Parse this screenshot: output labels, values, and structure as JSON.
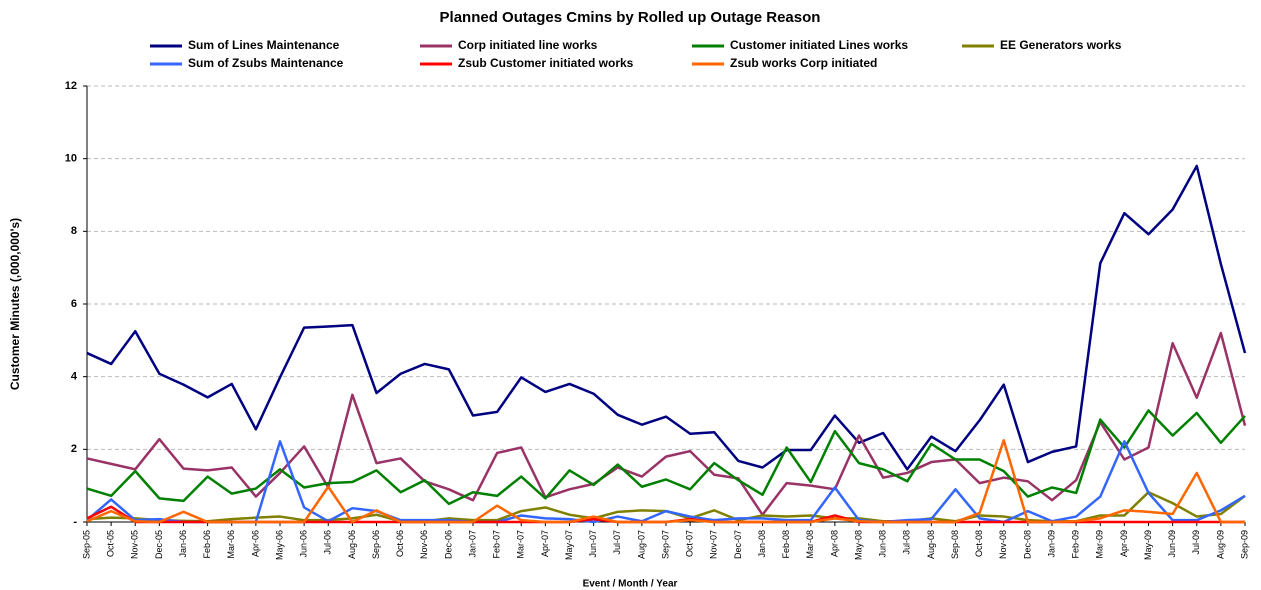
{
  "chart_data": {
    "type": "line",
    "title": "Planned Outages Cmins by Rolled up Outage Reason",
    "x_label": "Event / Month / Year",
    "y_label": "Customer Minutes (,000,000's)",
    "categories": [
      "Sep-05",
      "Oct-05",
      "Nov-05",
      "Dec-05",
      "Jan-06",
      "Feb-06",
      "Mar-06",
      "Apr-06",
      "May-06",
      "Jun-06",
      "Jul-06",
      "Aug-06",
      "Sep-06",
      "Oct-06",
      "Nov-06",
      "Dec-06",
      "Jan-07",
      "Feb-07",
      "Mar-07",
      "Apr-07",
      "May-07",
      "Jun-07",
      "Jul-07",
      "Aug-07",
      "Sep-07",
      "Oct-07",
      "Nov-07",
      "Dec-07",
      "Jan-08",
      "Feb-08",
      "Mar-08",
      "Apr-08",
      "May-08",
      "Jun-08",
      "Jul-08",
      "Aug-08",
      "Sep-08",
      "Oct-08",
      "Nov-08",
      "Dec-08",
      "Jan-09",
      "Feb-09",
      "Mar-09",
      "Apr-09",
      "May-09",
      "Jun-09",
      "Jul-09",
      "Aug-09",
      "Sep-09"
    ],
    "series": [
      {
        "name": "Sum of Lines Maintenance",
        "color": "#000080",
        "values": [
          4.65,
          4.35,
          5.25,
          4.08,
          3.78,
          3.43,
          3.8,
          2.55,
          3.98,
          5.35,
          5.38,
          5.42,
          3.55,
          4.08,
          4.35,
          4.2,
          2.93,
          3.03,
          3.98,
          3.58,
          3.8,
          3.53,
          2.95,
          2.68,
          2.9,
          2.43,
          2.47,
          1.68,
          1.5,
          1.98,
          1.98,
          2.93,
          2.18,
          2.45,
          1.45,
          2.35,
          1.95,
          2.8,
          3.78,
          1.65,
          1.93,
          2.08,
          7.12,
          8.5,
          7.92,
          8.6,
          9.8,
          7.1,
          4.65
        ]
      },
      {
        "name": "Corp initiated line works",
        "color": "#993366",
        "values": [
          1.75,
          1.6,
          1.45,
          2.28,
          1.47,
          1.42,
          1.5,
          0.7,
          1.35,
          2.08,
          0.95,
          3.5,
          1.62,
          1.75,
          1.12,
          0.9,
          0.6,
          1.9,
          2.05,
          0.68,
          0.9,
          1.05,
          1.5,
          1.25,
          1.8,
          1.95,
          1.3,
          1.2,
          0.2,
          1.07,
          1.0,
          0.9,
          2.38,
          1.22,
          1.35,
          1.65,
          1.72,
          1.07,
          1.22,
          1.12,
          0.6,
          1.15,
          2.75,
          1.72,
          2.05,
          4.92,
          3.42,
          5.2,
          2.65
        ]
      },
      {
        "name": "Customer initiated Lines works",
        "color": "#008000",
        "values": [
          0.92,
          0.72,
          1.4,
          0.65,
          0.58,
          1.25,
          0.78,
          0.92,
          1.45,
          0.95,
          1.07,
          1.1,
          1.42,
          0.82,
          1.15,
          0.5,
          0.82,
          0.72,
          1.25,
          0.65,
          1.42,
          1.02,
          1.58,
          0.97,
          1.17,
          0.9,
          1.62,
          1.15,
          0.75,
          2.05,
          1.1,
          2.5,
          1.62,
          1.45,
          1.12,
          2.15,
          1.72,
          1.72,
          1.4,
          0.7,
          0.95,
          0.8,
          2.82,
          2.05,
          3.07,
          2.38,
          3.0,
          2.18,
          2.92
        ]
      },
      {
        "name": "EE Generators works",
        "color": "#808000",
        "values": [
          0.08,
          0.12,
          0.1,
          0.05,
          0.03,
          0.02,
          0.08,
          0.12,
          0.15,
          0.05,
          0.05,
          0.1,
          0.2,
          0.02,
          0.02,
          0.1,
          0.05,
          0.05,
          0.3,
          0.4,
          0.2,
          0.1,
          0.28,
          0.32,
          0.3,
          0.1,
          0.32,
          0.05,
          0.18,
          0.15,
          0.18,
          0.1,
          0.1,
          0.02,
          0.02,
          0.1,
          0.02,
          0.18,
          0.15,
          0.05,
          0.02,
          0.02,
          0.18,
          0.18,
          0.82,
          0.52,
          0.15,
          0.22,
          0.72
        ]
      },
      {
        "name": "Sum of Zsubs Maintenance",
        "color": "#3366ff",
        "values": [
          0.05,
          0.62,
          0.05,
          0.08,
          0,
          0,
          0,
          0,
          2.22,
          0.4,
          0.02,
          0.38,
          0.3,
          0.05,
          0.05,
          0.05,
          0,
          0,
          0.18,
          0.1,
          0.08,
          0,
          0.15,
          0.02,
          0.3,
          0.15,
          0.05,
          0.1,
          0.1,
          0.05,
          0.05,
          0.95,
          0.05,
          0,
          0.05,
          0.08,
          0.9,
          0.1,
          0,
          0.3,
          0.02,
          0.15,
          0.7,
          2.22,
          0.8,
          0.05,
          0.05,
          0.32,
          0.72
        ]
      },
      {
        "name": "Zsub Customer initiated works",
        "color": "#ff0000",
        "values": [
          0.1,
          0.42,
          0,
          0,
          0,
          0,
          0,
          0,
          0,
          0,
          0,
          0,
          0,
          0,
          0,
          0,
          0,
          0,
          0,
          0,
          0,
          0.08,
          0,
          0,
          0,
          0.08,
          0,
          0,
          0,
          0,
          0,
          0.18,
          0,
          0,
          0,
          0,
          0,
          0,
          0,
          0,
          0,
          0,
          0,
          0,
          0,
          0,
          0,
          0,
          0
        ]
      },
      {
        "name": "Zsub works Corp initiated",
        "color": "#ff6600",
        "values": [
          0.02,
          0.3,
          0.02,
          0,
          0.28,
          0,
          0,
          0,
          0,
          0,
          0.97,
          0,
          0.32,
          0,
          0,
          0,
          0,
          0.45,
          0.05,
          0,
          0,
          0.15,
          0,
          0,
          0,
          0.05,
          0,
          0,
          0,
          0,
          0,
          0.1,
          0.02,
          0,
          0,
          0,
          0,
          0.25,
          2.25,
          0,
          0,
          0.02,
          0.1,
          0.32,
          0.28,
          0.22,
          1.35,
          0,
          0
        ]
      }
    ],
    "ylim": [
      0,
      12
    ],
    "yticks": [
      {
        "value": 0,
        "label": "-"
      },
      2,
      4,
      6,
      8,
      10,
      12
    ],
    "grid": true
  }
}
